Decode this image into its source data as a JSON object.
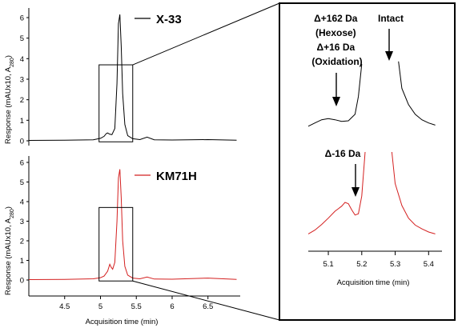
{
  "chart_data": [
    {
      "type": "line",
      "panel": "top-left",
      "series": [
        {
          "name": "X-33",
          "color": "#000000"
        }
      ],
      "x": [
        4.0,
        4.5,
        4.9,
        5.0,
        5.05,
        5.08,
        5.1,
        5.13,
        5.16,
        5.2,
        5.23,
        5.25,
        5.27,
        5.29,
        5.31,
        5.34,
        5.38,
        5.45,
        5.55,
        5.65,
        5.75,
        6.0,
        6.5,
        6.9
      ],
      "y": [
        0.02,
        0.03,
        0.05,
        0.12,
        0.22,
        0.35,
        0.38,
        0.32,
        0.3,
        0.6,
        2.8,
        5.7,
        6.15,
        4.6,
        2.3,
        0.8,
        0.25,
        0.1,
        0.06,
        0.18,
        0.05,
        0.04,
        0.06,
        0.03
      ],
      "xlim": [
        4.0,
        6.95
      ],
      "ylim": [
        0,
        6.3
      ],
      "yticks": [
        "0",
        "1",
        "2",
        "3",
        "4",
        "5",
        "6"
      ],
      "ylabel_main": "Response (mAUx10, A",
      "ylabel_sub": "280",
      "ylabel_close": ")",
      "zoom_box": {
        "x": [
          4.98,
          5.45
        ],
        "y": [
          -0.05,
          3.7
        ]
      }
    },
    {
      "type": "line",
      "panel": "bottom-left",
      "series": [
        {
          "name": "KM71H",
          "color": "#d42020"
        }
      ],
      "x": [
        4.0,
        4.5,
        4.9,
        5.0,
        5.05,
        5.1,
        5.13,
        5.15,
        5.17,
        5.2,
        5.23,
        5.25,
        5.27,
        5.29,
        5.31,
        5.34,
        5.38,
        5.45,
        5.55,
        5.65,
        5.75,
        6.0,
        6.5,
        6.9
      ],
      "y": [
        0.02,
        0.03,
        0.06,
        0.12,
        0.2,
        0.45,
        0.8,
        0.65,
        0.55,
        0.9,
        3.0,
        5.2,
        5.65,
        4.2,
        2.0,
        0.7,
        0.25,
        0.1,
        0.06,
        0.15,
        0.05,
        0.04,
        0.1,
        0.03
      ],
      "xlim": [
        4.0,
        6.95
      ],
      "ylim": [
        0,
        6.3
      ],
      "xticks": [
        "4.5",
        "5",
        "5.5",
        "6",
        "6.5"
      ],
      "yticks": [
        "0",
        "1",
        "2",
        "3",
        "4",
        "5",
        "6"
      ],
      "xlabel": "Acquisition time (min)",
      "ylabel_main": "Response (mAUx10, A",
      "ylabel_sub": "280",
      "ylabel_close": ")",
      "zoom_box": {
        "x": [
          4.98,
          5.45
        ],
        "y": [
          -0.05,
          3.7
        ]
      }
    },
    {
      "type": "line",
      "panel": "right-inset",
      "series": [
        {
          "name": "X-33 zoom",
          "color": "#000000",
          "segments": [
            {
              "x": [
                5.04,
                5.06,
                5.08,
                5.1,
                5.12,
                5.14,
                5.16,
                5.18,
                5.19,
                5.2
              ],
              "y": [
                0.3,
                0.36,
                0.42,
                0.44,
                0.42,
                0.39,
                0.4,
                0.52,
                0.85,
                1.45
              ]
            },
            {
              "x": [
                5.31,
                5.32,
                5.34,
                5.36,
                5.38,
                5.4,
                5.42
              ],
              "y": [
                1.5,
                1.0,
                0.7,
                0.52,
                0.42,
                0.36,
                0.32
              ]
            }
          ]
        },
        {
          "name": "KM71H zoom",
          "color": "#d42020",
          "segments": [
            {
              "x": [
                5.04,
                5.06,
                5.08,
                5.1,
                5.12,
                5.13,
                5.14,
                5.15,
                5.16,
                5.17,
                5.18,
                5.19,
                5.2,
                5.21
              ],
              "y": [
                0.3,
                0.36,
                0.45,
                0.55,
                0.66,
                0.7,
                0.74,
                0.8,
                0.78,
                0.68,
                0.6,
                0.62,
                0.9,
                1.6
              ]
            },
            {
              "x": [
                5.29,
                5.3,
                5.32,
                5.34,
                5.36,
                5.38,
                5.4,
                5.42
              ],
              "y": [
                1.6,
                1.1,
                0.75,
                0.55,
                0.44,
                0.38,
                0.33,
                0.3
              ]
            }
          ]
        }
      ],
      "xlim": [
        5.04,
        5.44
      ],
      "xticks": [
        "5.1",
        "5.2",
        "5.3",
        "5.4"
      ],
      "xlabel": "Acquisition time (min)",
      "annotations": [
        {
          "lines": [
            "Δ+162 Da",
            "(Hexose)",
            "Δ+16 Da",
            "(Oxidation)"
          ]
        },
        {
          "lines": [
            "Intact"
          ]
        },
        {
          "lines": [
            "Δ-16 Da"
          ]
        }
      ]
    }
  ]
}
